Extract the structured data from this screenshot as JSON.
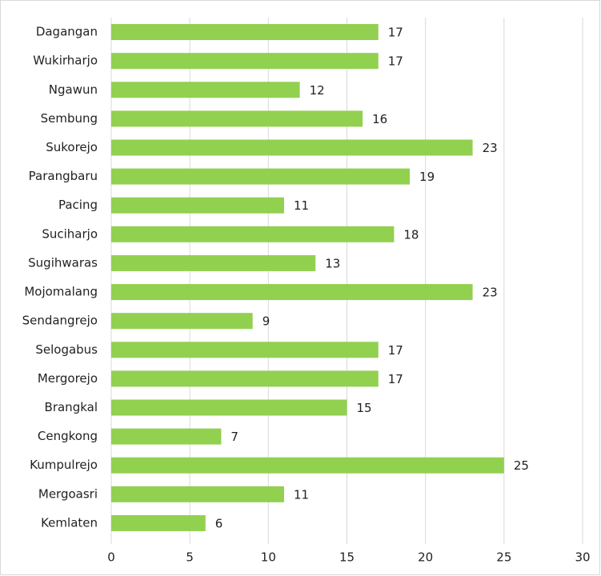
{
  "chart_data": {
    "type": "barh",
    "categories": [
      "Dagangan",
      "Wukirharjo",
      "Ngawun",
      "Sembung",
      "Sukorejo",
      "Parangbaru",
      "Pacing",
      "Suciharjo",
      "Sugihwaras",
      "Mojomalang",
      "Sendangrejo",
      "Selogabus",
      "Mergorejo",
      "Brangkal",
      "Cengkong",
      "Kumpulrejo",
      "Mergoasri",
      "Kemlaten"
    ],
    "values": [
      17,
      17,
      12,
      16,
      23,
      19,
      11,
      18,
      13,
      23,
      9,
      17,
      17,
      15,
      7,
      25,
      11,
      6
    ],
    "color": "#92d050",
    "xlim": [
      0,
      30
    ],
    "xticks": [
      0,
      5,
      10,
      15,
      20,
      25,
      30
    ],
    "grid": true
  }
}
